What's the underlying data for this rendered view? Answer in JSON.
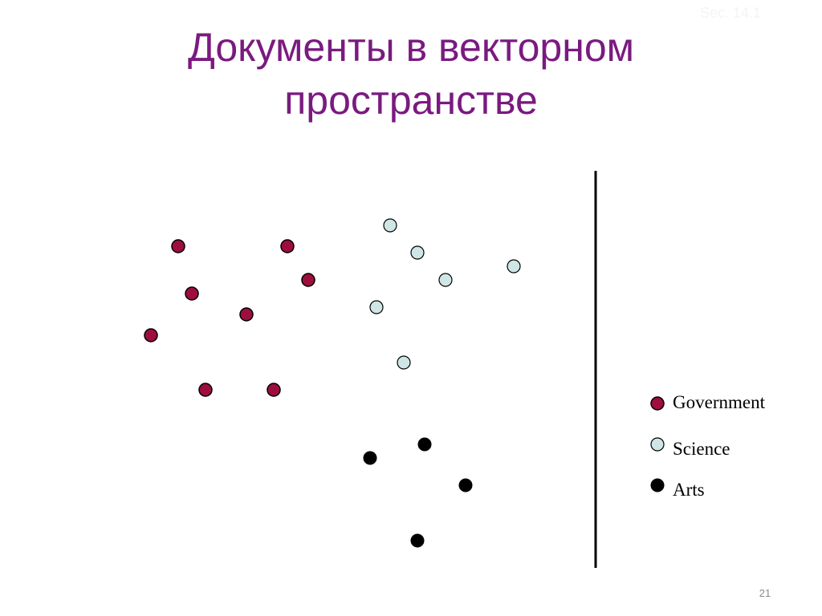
{
  "slide": {
    "section": "Sec. 14.1",
    "title": [
      "Документы в векторном",
      "пространстве"
    ],
    "legend": [
      "Government",
      "Science",
      "Arts"
    ],
    "page_number": "21"
  }
}
